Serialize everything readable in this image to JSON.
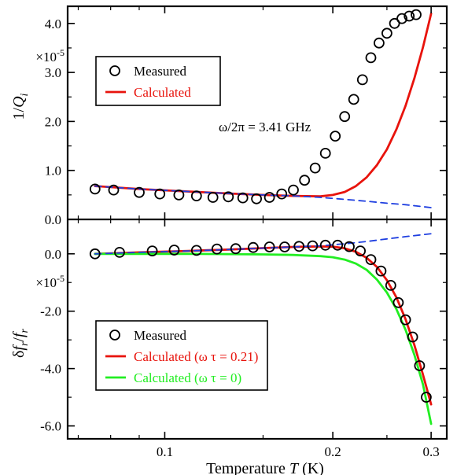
{
  "chart_data": {
    "type": "scatter",
    "x_scale": "log",
    "xlabel": "Temperature T (K)",
    "xlim": [
      0.067,
      0.32
    ],
    "xticks": [
      {
        "value": 0.1,
        "label": "0.1"
      },
      {
        "value": 0.2,
        "label": "0.2"
      },
      {
        "value": 0.3,
        "label": "0.3"
      }
    ],
    "panels": [
      {
        "id": "top",
        "ylabel": "1/Q_i",
        "ylabel_main": "1/Q",
        "ylabel_sub": "i",
        "multiplier": "×10",
        "multiplier_exp": "-5",
        "ylim": [
          0.0,
          4.35
        ],
        "yticks": [
          {
            "value": 0.0,
            "label": "0.0"
          },
          {
            "value": 1.0,
            "label": "1.0"
          },
          {
            "value": 2.0,
            "label": "2.0"
          },
          {
            "value": 3.0,
            "label": "3.0"
          },
          {
            "value": 4.0,
            "label": "4.0"
          }
        ],
        "annotation": "ω/2π = 3.41 GHz",
        "legend": [
          {
            "label": "Measured",
            "style": "circle",
            "color": "#000000"
          },
          {
            "label": "Calculated",
            "style": "line",
            "color": "#e8130c"
          }
        ],
        "series": [
          {
            "name": "Measured",
            "style": "circle",
            "color": "#000000",
            "x": [
              0.075,
              0.081,
              0.09,
              0.098,
              0.106,
              0.114,
              0.122,
              0.13,
              0.138,
              0.146,
              0.154,
              0.162,
              0.17,
              0.178,
              0.186,
              0.194,
              0.202,
              0.21,
              0.218,
              0.226,
              0.234,
              0.242,
              0.25,
              0.258,
              0.266,
              0.274,
              0.282
            ],
            "y": [
              0.62,
              0.6,
              0.55,
              0.52,
              0.5,
              0.48,
              0.45,
              0.46,
              0.44,
              0.42,
              0.45,
              0.52,
              0.6,
              0.8,
              1.05,
              1.35,
              1.7,
              2.1,
              2.45,
              2.85,
              3.3,
              3.6,
              3.8,
              4.0,
              4.1,
              4.15,
              4.18
            ]
          },
          {
            "name": "Calculated",
            "style": "line",
            "color": "#e8130c",
            "x": [
              0.075,
              0.09,
              0.11,
              0.13,
              0.15,
              0.17,
              0.19,
              0.2,
              0.21,
              0.22,
              0.23,
              0.24,
              0.25,
              0.26,
              0.27,
              0.28,
              0.29,
              0.3
            ],
            "y": [
              0.68,
              0.62,
              0.57,
              0.53,
              0.5,
              0.48,
              0.47,
              0.5,
              0.56,
              0.68,
              0.86,
              1.11,
              1.43,
              1.84,
              2.32,
              2.88,
              3.51,
              4.2
            ]
          },
          {
            "name": "Background",
            "style": "dash",
            "color": "#1f3fe0",
            "x": [
              0.075,
              0.09,
              0.11,
              0.13,
              0.15,
              0.17,
              0.19,
              0.21,
              0.23,
              0.25,
              0.27,
              0.3
            ],
            "y": [
              0.68,
              0.62,
              0.57,
              0.53,
              0.5,
              0.48,
              0.45,
              0.41,
              0.37,
              0.33,
              0.3,
              0.24
            ]
          }
        ]
      },
      {
        "id": "bottom",
        "ylabel": "δf_r/f_r",
        "ylabel_pre": "δf",
        "ylabel_sub1": "r",
        "ylabel_mid": "/f",
        "ylabel_sub2": "r",
        "multiplier": "×10",
        "multiplier_exp": "-5",
        "ylim": [
          -6.45,
          1.2
        ],
        "yticks": [
          {
            "value": 0.0,
            "label": "0.0"
          },
          {
            "value": -2.0,
            "label": "-2.0"
          },
          {
            "value": -4.0,
            "label": "-4.0"
          },
          {
            "value": -6.0,
            "label": "-6.0"
          }
        ],
        "legend": [
          {
            "label": "Measured",
            "style": "circle",
            "color": "#000000"
          },
          {
            "label": "Calculated (ω τ = 0.21)",
            "style": "line",
            "color": "#e8130c"
          },
          {
            "label": "Calculated (ω τ = 0)",
            "style": "line",
            "color": "#22ee22"
          }
        ],
        "series": [
          {
            "name": "Measured",
            "style": "circle",
            "color": "#000000",
            "x": [
              0.075,
              0.083,
              0.095,
              0.104,
              0.114,
              0.124,
              0.134,
              0.144,
              0.154,
              0.164,
              0.174,
              0.184,
              0.194,
              0.204,
              0.214,
              0.224,
              0.234,
              0.244,
              0.254,
              0.262,
              0.27,
              0.278,
              0.286,
              0.294
            ],
            "y": [
              0.0,
              0.05,
              0.1,
              0.13,
              0.12,
              0.17,
              0.18,
              0.22,
              0.24,
              0.24,
              0.26,
              0.28,
              0.3,
              0.3,
              0.25,
              0.1,
              -0.2,
              -0.6,
              -1.1,
              -1.7,
              -2.3,
              -2.9,
              -3.9,
              -5.0
            ]
          },
          {
            "name": "Calculated (ω τ = 0.21)",
            "style": "line",
            "color": "#e8130c",
            "x": [
              0.075,
              0.09,
              0.11,
              0.13,
              0.15,
              0.17,
              0.19,
              0.2,
              0.21,
              0.22,
              0.23,
              0.24,
              0.25,
              0.26,
              0.27,
              0.28,
              0.29,
              0.3
            ],
            "y": [
              0.0,
              0.05,
              0.1,
              0.15,
              0.2,
              0.24,
              0.26,
              0.25,
              0.19,
              0.07,
              -0.14,
              -0.46,
              -0.92,
              -1.52,
              -2.28,
              -3.18,
              -4.21,
              -5.25
            ]
          },
          {
            "name": "Calculated (ω τ = 0)",
            "style": "line",
            "color": "#22ee22",
            "x": [
              0.075,
              0.09,
              0.11,
              0.13,
              0.15,
              0.17,
              0.19,
              0.2,
              0.21,
              0.22,
              0.23,
              0.24,
              0.25,
              0.26,
              0.27,
              0.28,
              0.29,
              0.3
            ],
            "y": [
              0.0,
              0.0,
              0.0,
              -0.01,
              -0.02,
              -0.04,
              -0.08,
              -0.12,
              -0.2,
              -0.34,
              -0.56,
              -0.9,
              -1.35,
              -1.93,
              -2.65,
              -3.52,
              -4.55,
              -5.93
            ]
          },
          {
            "name": "Background",
            "style": "dash",
            "color": "#1f3fe0",
            "x": [
              0.075,
              0.09,
              0.11,
              0.13,
              0.15,
              0.17,
              0.19,
              0.21,
              0.23,
              0.25,
              0.27,
              0.3
            ],
            "y": [
              0.0,
              0.05,
              0.1,
              0.15,
              0.2,
              0.24,
              0.28,
              0.35,
              0.43,
              0.52,
              0.6,
              0.7
            ]
          }
        ]
      }
    ]
  }
}
